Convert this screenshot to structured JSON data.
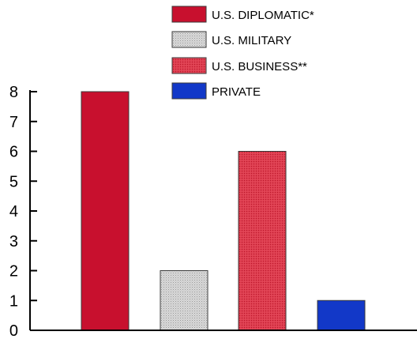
{
  "chart_data": {
    "type": "bar",
    "categories": [
      "U.S. DIPLOMATIC*",
      "U.S. MILITARY",
      "U.S. BUSINESS**",
      "PRIVATE"
    ],
    "values": [
      8,
      2,
      6,
      1
    ],
    "ylim": [
      0,
      8
    ],
    "yticks": [
      "0",
      "1",
      "2",
      "3",
      "4",
      "5",
      "6",
      "7",
      "8"
    ],
    "legend_position": "top-right",
    "grid": false,
    "colors": [
      "#c8102e",
      "#cfcfcf",
      "#dc3545",
      "#1238c8"
    ],
    "fill_patterns": [
      "solid",
      "stippled",
      "stippled",
      "solid"
    ]
  }
}
